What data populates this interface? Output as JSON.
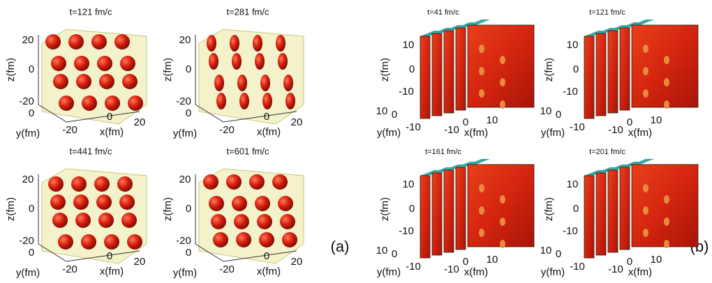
{
  "panels_a": {
    "label": "(a)",
    "plots": [
      {
        "title": "t=121 fm/c",
        "z_label": "z(fm)",
        "y_label": "y(fm)",
        "x_label": "x(fm)",
        "z_ticks": [
          "20",
          "0",
          "-20"
        ],
        "y_ticks": [
          "0",
          "-20"
        ],
        "x_ticks": [
          "0",
          "20"
        ]
      },
      {
        "title": "t=281 fm/c",
        "z_label": "z(fm)",
        "y_label": "y(fm)",
        "x_label": "x(fm)",
        "z_ticks": [
          "20",
          "0",
          "-20"
        ],
        "y_ticks": [
          "0",
          "-20"
        ],
        "x_ticks": [
          "0",
          "20"
        ]
      },
      {
        "title": "t=441 fm/c",
        "z_label": "z(fm)",
        "y_label": "y(fm)",
        "x_label": "x(fm)",
        "z_ticks": [
          "20",
          "0",
          "-20"
        ],
        "y_ticks": [
          "0",
          "-20"
        ],
        "x_ticks": [
          "0",
          "20"
        ]
      },
      {
        "title": "t=601 fm/c",
        "z_label": "z(fm)",
        "y_label": "y(fm)",
        "x_label": "x(fm)",
        "z_ticks": [
          "20",
          "0",
          "-20"
        ],
        "y_ticks": [
          "0",
          "-20"
        ],
        "x_ticks": [
          "0",
          "20"
        ]
      }
    ]
  },
  "panels_b": {
    "label": "(b)",
    "plots": [
      {
        "title": "t=41 fm/c",
        "z_label": "z(fm)",
        "y_label": "y(fm)",
        "x_label": "x(fm)",
        "z_ticks": [
          "10",
          "0",
          "-10"
        ],
        "y_ticks": [
          "10",
          "0",
          "-10"
        ],
        "x_ticks": [
          "-10",
          "0",
          "10"
        ]
      },
      {
        "title": "t=121 fm/c",
        "z_label": "z(fm)",
        "y_label": "y(fm)",
        "x_label": "x(fm)",
        "z_ticks": [
          "10",
          "0",
          "-10"
        ],
        "y_ticks": [
          "10",
          "0",
          "-10"
        ],
        "x_ticks": [
          "-10",
          "0",
          "10"
        ]
      },
      {
        "title": "t=161 fm/c",
        "z_label": "z(fm)",
        "y_label": "y(fm)",
        "x_label": "x(fm)",
        "z_ticks": [
          "10",
          "0",
          "-10"
        ],
        "y_ticks": [
          "10",
          "0",
          "-10"
        ],
        "x_ticks": [
          "-10",
          "0",
          "10"
        ]
      },
      {
        "title": "t=201 fm/c",
        "z_label": "z(fm)",
        "y_label": "y(fm)",
        "x_label": "x(fm)",
        "z_ticks": [
          "10",
          "0",
          "-10"
        ],
        "y_ticks": [
          "10",
          "0",
          "-10"
        ],
        "x_ticks": [
          "-10",
          "0",
          "10"
        ]
      }
    ]
  }
}
